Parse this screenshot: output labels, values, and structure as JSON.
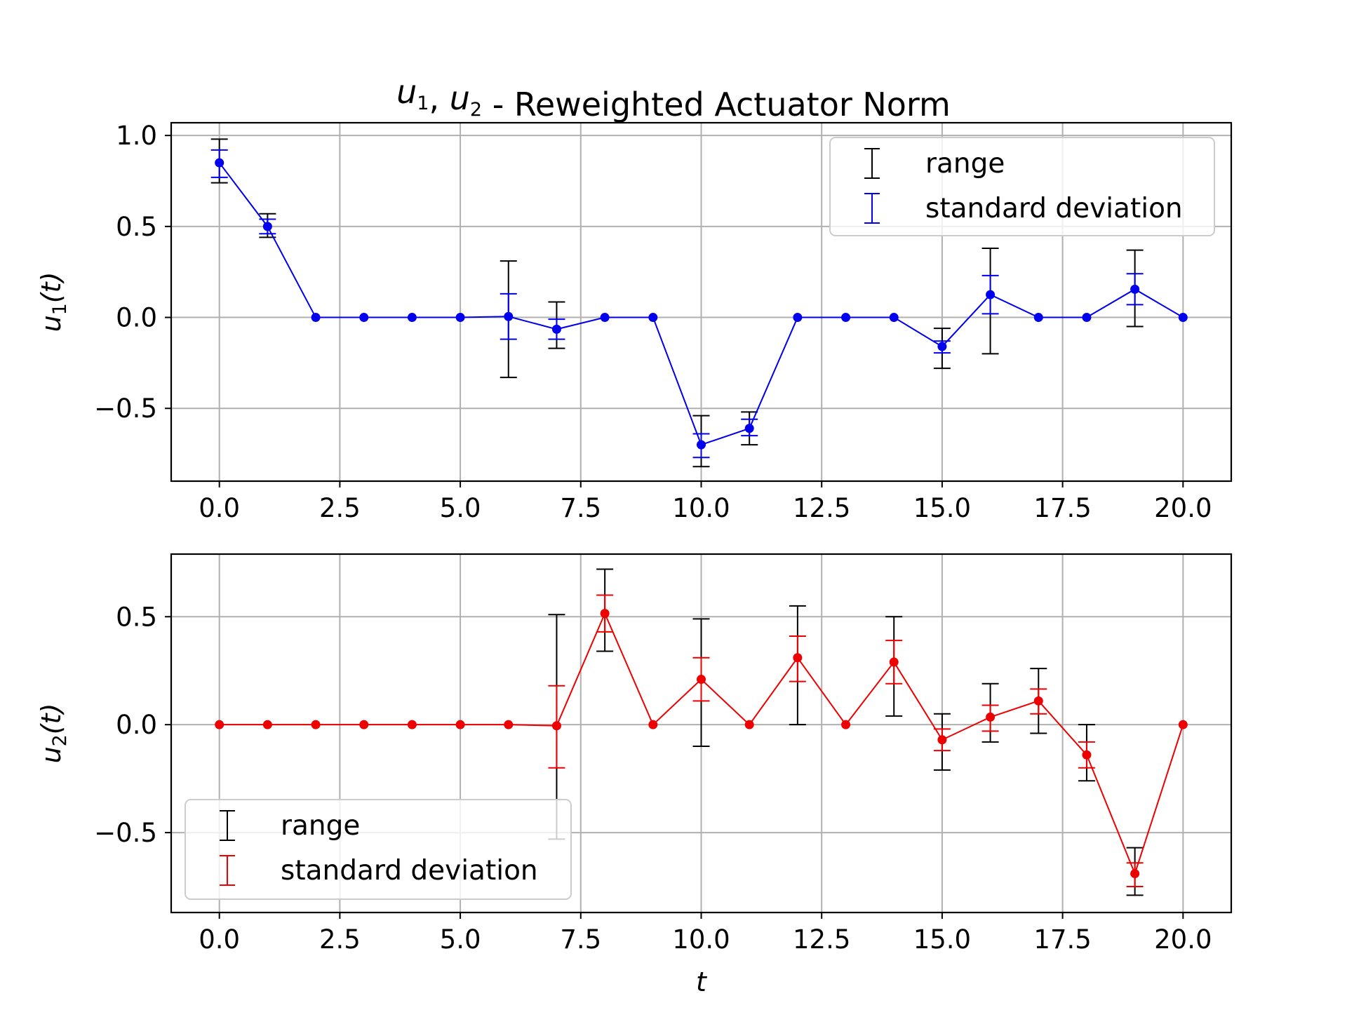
{
  "figure": {
    "title_vars": [
      {
        "base": "u",
        "sub": "1"
      },
      {
        "base": "u",
        "sub": "2"
      }
    ],
    "title_suffix": " - Reweighted Actuator Norm"
  },
  "chart_data": [
    {
      "type": "line",
      "ylabel": {
        "base": "u",
        "sub": "1",
        "suffix": "(t)"
      },
      "xlabel": "t",
      "xlim": [
        -1,
        21
      ],
      "ylim": [
        -0.9,
        1.07
      ],
      "xticks": [
        "0.0",
        "2.5",
        "5.0",
        "7.5",
        "10.0",
        "12.5",
        "15.0",
        "17.5",
        "20.0"
      ],
      "xtick_values": [
        0,
        2.5,
        5,
        7.5,
        10,
        12.5,
        15,
        17.5,
        20
      ],
      "yticks": [
        "1.0",
        "0.5",
        "0.0",
        "−0.5"
      ],
      "ytick_values": [
        1.0,
        0.5,
        0.0,
        -0.5
      ],
      "grid": true,
      "legend_position": "top-right",
      "color": "#0000ee",
      "range_color": "#000000",
      "legend": {
        "range_label": "range",
        "std_label": "standard deviation"
      },
      "x": [
        0,
        1,
        2,
        3,
        4,
        5,
        6,
        7,
        8,
        9,
        10,
        11,
        12,
        13,
        14,
        15,
        16,
        17,
        18,
        19,
        20
      ],
      "mean": [
        0.85,
        0.5,
        0.0,
        0.0,
        0.0,
        0.0,
        0.005,
        -0.065,
        0.0,
        0.0,
        -0.7,
        -0.61,
        0.0,
        0.0,
        0.0,
        -0.16,
        0.125,
        0.0,
        0.0,
        0.155,
        0.0
      ],
      "std_low": [
        0.77,
        0.46,
        0.0,
        0.0,
        0.0,
        0.0,
        -0.12,
        -0.12,
        0.0,
        0.0,
        -0.77,
        -0.65,
        0.0,
        0.0,
        0.0,
        -0.195,
        0.02,
        0.0,
        0.0,
        0.07,
        0.0
      ],
      "std_high": [
        0.92,
        0.54,
        0.0,
        0.0,
        0.0,
        0.0,
        0.13,
        -0.01,
        0.0,
        0.0,
        -0.64,
        -0.56,
        0.0,
        0.0,
        0.0,
        -0.13,
        0.23,
        0.0,
        0.0,
        0.24,
        0.0
      ],
      "range_low": [
        0.74,
        0.44,
        0.0,
        0.0,
        0.0,
        0.0,
        -0.33,
        -0.17,
        0.0,
        0.0,
        -0.82,
        -0.7,
        0.0,
        0.0,
        0.0,
        -0.28,
        -0.2,
        0.0,
        0.0,
        -0.05,
        0.0
      ],
      "range_high": [
        0.98,
        0.57,
        0.0,
        0.0,
        0.0,
        0.0,
        0.31,
        0.085,
        0.0,
        0.0,
        -0.54,
        -0.52,
        0.0,
        0.0,
        0.0,
        -0.06,
        0.38,
        0.0,
        0.0,
        0.37,
        0.0
      ]
    },
    {
      "type": "line",
      "ylabel": {
        "base": "u",
        "sub": "2",
        "suffix": "(t)"
      },
      "xlabel": "t",
      "xlim": [
        -1,
        21
      ],
      "ylim": [
        -0.87,
        0.79
      ],
      "xticks": [
        "0.0",
        "2.5",
        "5.0",
        "7.5",
        "10.0",
        "12.5",
        "15.0",
        "17.5",
        "20.0"
      ],
      "xtick_values": [
        0,
        2.5,
        5,
        7.5,
        10,
        12.5,
        15,
        17.5,
        20
      ],
      "yticks": [
        "0.5",
        "0.0",
        "−0.5"
      ],
      "ytick_values": [
        0.5,
        0.0,
        -0.5
      ],
      "grid": true,
      "legend_position": "bottom-left",
      "color": "#ee0000",
      "range_color": "#000000",
      "legend": {
        "range_label": "range",
        "std_label": "standard deviation"
      },
      "x": [
        0,
        1,
        2,
        3,
        4,
        5,
        6,
        7,
        8,
        9,
        10,
        11,
        12,
        13,
        14,
        15,
        16,
        17,
        18,
        19,
        20
      ],
      "mean": [
        0.0,
        0.0,
        0.0,
        0.0,
        0.0,
        0.0,
        0.0,
        -0.005,
        0.515,
        0.0,
        0.21,
        0.0,
        0.31,
        0.0,
        0.29,
        -0.07,
        0.035,
        0.11,
        -0.14,
        -0.69,
        0.0
      ],
      "std_low": [
        0.0,
        0.0,
        0.0,
        0.0,
        0.0,
        0.0,
        0.0,
        -0.2,
        0.43,
        0.0,
        0.11,
        0.0,
        0.2,
        0.0,
        0.19,
        -0.12,
        -0.03,
        0.05,
        -0.2,
        -0.75,
        0.0
      ],
      "std_high": [
        0.0,
        0.0,
        0.0,
        0.0,
        0.0,
        0.0,
        0.0,
        0.18,
        0.6,
        0.0,
        0.31,
        0.0,
        0.41,
        0.0,
        0.39,
        -0.02,
        0.09,
        0.165,
        -0.08,
        -0.64,
        0.0
      ],
      "range_low": [
        0.0,
        0.0,
        0.0,
        0.0,
        0.0,
        0.0,
        0.0,
        -0.53,
        0.34,
        0.0,
        -0.1,
        0.0,
        0.0,
        0.0,
        0.04,
        -0.21,
        -0.08,
        -0.04,
        -0.26,
        -0.79,
        0.0
      ],
      "range_high": [
        0.0,
        0.0,
        0.0,
        0.0,
        0.0,
        0.0,
        0.0,
        0.51,
        0.72,
        0.0,
        0.49,
        0.0,
        0.55,
        0.0,
        0.5,
        0.05,
        0.19,
        0.26,
        0.0,
        -0.57,
        0.0
      ]
    }
  ]
}
